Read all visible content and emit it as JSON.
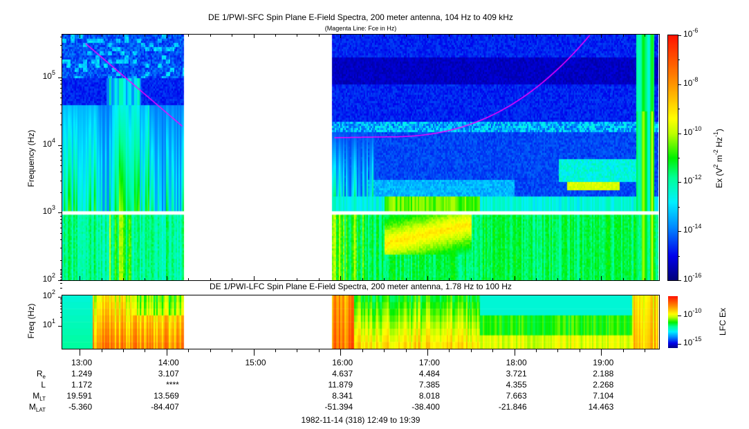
{
  "chart_data": {
    "type": "heatmap",
    "x": {
      "start": "12:49",
      "end": "19:39",
      "ticks": [
        "13:00",
        "14:00",
        "15:00",
        "16:00",
        "17:00",
        "18:00",
        "19:00"
      ],
      "data_gap": [
        "14:11",
        "15:54"
      ]
    },
    "panels": [
      {
        "title": "DE 1/PWI-SFC  Spin Plane E-Field Spectra, 200 meter antenna, 104 Hz to 409 kHz",
        "subtitle": "(Magenta Line: Fce in Hz)",
        "ylabel": "Frequency (Hz)",
        "yscale": "log",
        "ylim": [
          104,
          409000
        ],
        "yticks": [
          {
            "base": "10",
            "exp": "2"
          },
          {
            "base": "10",
            "exp": "3"
          },
          {
            "base": "10",
            "exp": "4"
          },
          {
            "base": "10",
            "exp": "5"
          }
        ],
        "overlay": {
          "name": "Fce",
          "color": "#ff00ff"
        },
        "colorbar": {
          "label_parts": [
            "Ex (V",
            "2",
            " m",
            "-2",
            " Hz",
            "-1",
            ")"
          ],
          "range": [
            1e-16,
            1e-06
          ],
          "ticks": [
            {
              "base": "10",
              "exp": "-6"
            },
            {
              "base": "10",
              "exp": "-8"
            },
            {
              "base": "10",
              "exp": "-10"
            },
            {
              "base": "10",
              "exp": "-12"
            },
            {
              "base": "10",
              "exp": "-14"
            },
            {
              "base": "10",
              "exp": "-16"
            }
          ]
        }
      },
      {
        "title": "DE 1/PWI-LFC  Spin Plane E-Field Spectra, 200 meter antenna, 1.78 Hz to 100 Hz",
        "ylabel": "Freq (Hz)",
        "yscale": "log",
        "ylim": [
          1.78,
          100
        ],
        "yticks": [
          {
            "base": "10",
            "exp": "2"
          },
          {
            "base": "10",
            "exp": "1"
          }
        ],
        "colorbar": {
          "label": "LFC Ex",
          "ticks": [
            {
              "base": "10",
              "exp": "-10"
            },
            {
              "base": "10",
              "exp": "-15"
            }
          ]
        }
      }
    ],
    "ephemeris": {
      "rows": [
        {
          "label": "R",
          "sub": "e",
          "values": [
            "1.249",
            "3.107",
            "",
            "4.637",
            "4.484",
            "3.721",
            "2.188"
          ]
        },
        {
          "label": "L",
          "sub": "",
          "values": [
            "1.172",
            "****",
            "",
            "11.879",
            "7.385",
            "4.355",
            "2.268"
          ]
        },
        {
          "label": "M",
          "sub": "LT",
          "values": [
            "19.591",
            "13.569",
            "",
            "8.341",
            "8.018",
            "7.663",
            "7.104"
          ]
        },
        {
          "label": "M",
          "sub": "LAT",
          "values": [
            "-5.360",
            "-84.407",
            "",
            "-51.394",
            "-38.400",
            "-21.846",
            "14.463"
          ]
        }
      ],
      "date_label": "1982-11-14 (318) 12:49 to 19:39"
    }
  }
}
